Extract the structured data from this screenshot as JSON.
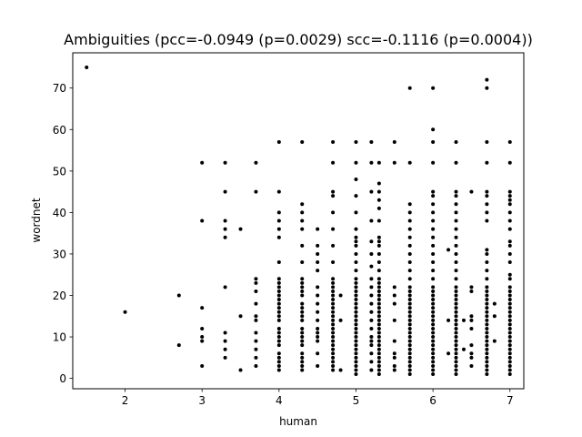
{
  "chart_data": {
    "type": "scatter",
    "title": "Ambiguities (pcc=-0.0949 (p=0.0029) scc=-0.1116 (p=0.0004))",
    "xlabel": "human",
    "ylabel": "wordnet",
    "xlim": [
      1.32,
      7.18
    ],
    "ylim": [
      -2.5,
      78.5
    ],
    "x_ticks": [
      2,
      3,
      4,
      5,
      6,
      7
    ],
    "y_ticks": [
      0,
      10,
      20,
      30,
      40,
      50,
      60,
      70
    ],
    "grid": false,
    "marker_color": "#000000",
    "points": [
      [
        1.5,
        75
      ],
      [
        2,
        16
      ],
      [
        2.7,
        20
      ],
      [
        2.7,
        8
      ],
      [
        3,
        52
      ],
      [
        3,
        38
      ],
      [
        3,
        17
      ],
      [
        3,
        12
      ],
      [
        3,
        10
      ],
      [
        3,
        9
      ],
      [
        3,
        3
      ],
      [
        3.3,
        52
      ],
      [
        3.3,
        45
      ],
      [
        3.3,
        38
      ],
      [
        3.3,
        36
      ],
      [
        3.3,
        34
      ],
      [
        3.3,
        22
      ],
      [
        3.3,
        11
      ],
      [
        3.3,
        9
      ],
      [
        3.3,
        7
      ],
      [
        3.3,
        5
      ],
      [
        3.5,
        36
      ],
      [
        3.5,
        15
      ],
      [
        3.5,
        2
      ],
      [
        3.7,
        52
      ],
      [
        3.7,
        45
      ],
      [
        3.7,
        24
      ],
      [
        3.7,
        23
      ],
      [
        3.7,
        21
      ],
      [
        3.7,
        18
      ],
      [
        3.7,
        15
      ],
      [
        3.7,
        14
      ],
      [
        3.7,
        11
      ],
      [
        3.7,
        9
      ],
      [
        3.7,
        7
      ],
      [
        3.7,
        5
      ],
      [
        3.7,
        3
      ],
      [
        4,
        57
      ],
      [
        4,
        45
      ],
      [
        4,
        40
      ],
      [
        4,
        38
      ],
      [
        4,
        36
      ],
      [
        4,
        34
      ],
      [
        4,
        28
      ],
      [
        4,
        24
      ],
      [
        4,
        23
      ],
      [
        4,
        22
      ],
      [
        4,
        21
      ],
      [
        4,
        20
      ],
      [
        4,
        19
      ],
      [
        4,
        18
      ],
      [
        4,
        17
      ],
      [
        4,
        16
      ],
      [
        4,
        15
      ],
      [
        4,
        14
      ],
      [
        4,
        12
      ],
      [
        4,
        11
      ],
      [
        4,
        10
      ],
      [
        4,
        9
      ],
      [
        4,
        8
      ],
      [
        4,
        6
      ],
      [
        4,
        5
      ],
      [
        4,
        4
      ],
      [
        4,
        3
      ],
      [
        4,
        2
      ],
      [
        4.3,
        57
      ],
      [
        4.3,
        42
      ],
      [
        4.3,
        40
      ],
      [
        4.3,
        38
      ],
      [
        4.3,
        36
      ],
      [
        4.3,
        32
      ],
      [
        4.3,
        28
      ],
      [
        4.3,
        24
      ],
      [
        4.3,
        23
      ],
      [
        4.3,
        22
      ],
      [
        4.3,
        21
      ],
      [
        4.3,
        20
      ],
      [
        4.3,
        18
      ],
      [
        4.3,
        17
      ],
      [
        4.3,
        16
      ],
      [
        4.3,
        15
      ],
      [
        4.3,
        14
      ],
      [
        4.3,
        12
      ],
      [
        4.3,
        11
      ],
      [
        4.3,
        10
      ],
      [
        4.3,
        9
      ],
      [
        4.3,
        8
      ],
      [
        4.3,
        6
      ],
      [
        4.3,
        5
      ],
      [
        4.3,
        4
      ],
      [
        4.3,
        3
      ],
      [
        4.3,
        2
      ],
      [
        4.5,
        36
      ],
      [
        4.5,
        32
      ],
      [
        4.5,
        30
      ],
      [
        4.5,
        28
      ],
      [
        4.5,
        26
      ],
      [
        4.5,
        22
      ],
      [
        4.5,
        20
      ],
      [
        4.5,
        18
      ],
      [
        4.5,
        16
      ],
      [
        4.5,
        14
      ],
      [
        4.5,
        12
      ],
      [
        4.5,
        11
      ],
      [
        4.5,
        10
      ],
      [
        4.5,
        9
      ],
      [
        4.5,
        6
      ],
      [
        4.5,
        3
      ],
      [
        4.7,
        57
      ],
      [
        4.7,
        52
      ],
      [
        4.7,
        45
      ],
      [
        4.7,
        44
      ],
      [
        4.7,
        40
      ],
      [
        4.7,
        36
      ],
      [
        4.7,
        32
      ],
      [
        4.7,
        28
      ],
      [
        4.7,
        24
      ],
      [
        4.7,
        23
      ],
      [
        4.7,
        22
      ],
      [
        4.7,
        21
      ],
      [
        4.7,
        20
      ],
      [
        4.7,
        19
      ],
      [
        4.7,
        18
      ],
      [
        4.7,
        17
      ],
      [
        4.7,
        16
      ],
      [
        4.7,
        15
      ],
      [
        4.7,
        14
      ],
      [
        4.7,
        13
      ],
      [
        4.7,
        12
      ],
      [
        4.7,
        11
      ],
      [
        4.7,
        10
      ],
      [
        4.7,
        9
      ],
      [
        4.7,
        8
      ],
      [
        4.7,
        7
      ],
      [
        4.7,
        6
      ],
      [
        4.7,
        5
      ],
      [
        4.7,
        4
      ],
      [
        4.7,
        3
      ],
      [
        4.7,
        2
      ],
      [
        4.8,
        20
      ],
      [
        4.8,
        14
      ],
      [
        4.8,
        2
      ],
      [
        5,
        57
      ],
      [
        5,
        52
      ],
      [
        5,
        48
      ],
      [
        5,
        44
      ],
      [
        5,
        40
      ],
      [
        5,
        36
      ],
      [
        5,
        34
      ],
      [
        5,
        33
      ],
      [
        5,
        32
      ],
      [
        5,
        30
      ],
      [
        5,
        28
      ],
      [
        5,
        26
      ],
      [
        5,
        24
      ],
      [
        5,
        23
      ],
      [
        5,
        22
      ],
      [
        5,
        21
      ],
      [
        5,
        20
      ],
      [
        5,
        19
      ],
      [
        5,
        18
      ],
      [
        5,
        17
      ],
      [
        5,
        16
      ],
      [
        5,
        15
      ],
      [
        5,
        14
      ],
      [
        5,
        13
      ],
      [
        5,
        12
      ],
      [
        5,
        11
      ],
      [
        5,
        10
      ],
      [
        5,
        9
      ],
      [
        5,
        8
      ],
      [
        5,
        7
      ],
      [
        5,
        6
      ],
      [
        5,
        5
      ],
      [
        5,
        4
      ],
      [
        5,
        3
      ],
      [
        5,
        2
      ],
      [
        5,
        1
      ],
      [
        5.2,
        57
      ],
      [
        5.2,
        52
      ],
      [
        5.2,
        45
      ],
      [
        5.2,
        38
      ],
      [
        5.2,
        33
      ],
      [
        5.2,
        30
      ],
      [
        5.2,
        27
      ],
      [
        5.2,
        24
      ],
      [
        5.2,
        22
      ],
      [
        5.2,
        20
      ],
      [
        5.2,
        18
      ],
      [
        5.2,
        16
      ],
      [
        5.2,
        14
      ],
      [
        5.2,
        12
      ],
      [
        5.2,
        10
      ],
      [
        5.2,
        9
      ],
      [
        5.2,
        8
      ],
      [
        5.2,
        6
      ],
      [
        5.2,
        4
      ],
      [
        5.2,
        2
      ],
      [
        5.3,
        52
      ],
      [
        5.3,
        47
      ],
      [
        5.3,
        45
      ],
      [
        5.3,
        43
      ],
      [
        5.3,
        41
      ],
      [
        5.3,
        38
      ],
      [
        5.3,
        34
      ],
      [
        5.3,
        33
      ],
      [
        5.3,
        32
      ],
      [
        5.3,
        30
      ],
      [
        5.3,
        28
      ],
      [
        5.3,
        26
      ],
      [
        5.3,
        24
      ],
      [
        5.3,
        23
      ],
      [
        5.3,
        22
      ],
      [
        5.3,
        21
      ],
      [
        5.3,
        20
      ],
      [
        5.3,
        19
      ],
      [
        5.3,
        18
      ],
      [
        5.3,
        17
      ],
      [
        5.3,
        16
      ],
      [
        5.3,
        15
      ],
      [
        5.3,
        14
      ],
      [
        5.3,
        13
      ],
      [
        5.3,
        12
      ],
      [
        5.3,
        11
      ],
      [
        5.3,
        10
      ],
      [
        5.3,
        9
      ],
      [
        5.3,
        8
      ],
      [
        5.3,
        7
      ],
      [
        5.3,
        6
      ],
      [
        5.3,
        5
      ],
      [
        5.3,
        4
      ],
      [
        5.3,
        3
      ],
      [
        5.3,
        2
      ],
      [
        5.3,
        1
      ],
      [
        5.5,
        57
      ],
      [
        5.5,
        52
      ],
      [
        5.5,
        22
      ],
      [
        5.5,
        20
      ],
      [
        5.5,
        18
      ],
      [
        5.5,
        14
      ],
      [
        5.5,
        9
      ],
      [
        5.5,
        6
      ],
      [
        5.5,
        5
      ],
      [
        5.5,
        3
      ],
      [
        5.5,
        2
      ],
      [
        5.7,
        70
      ],
      [
        5.7,
        52
      ],
      [
        5.7,
        42
      ],
      [
        5.7,
        40
      ],
      [
        5.7,
        38
      ],
      [
        5.7,
        36
      ],
      [
        5.7,
        34
      ],
      [
        5.7,
        32
      ],
      [
        5.7,
        30
      ],
      [
        5.7,
        28
      ],
      [
        5.7,
        26
      ],
      [
        5.7,
        24
      ],
      [
        5.7,
        22
      ],
      [
        5.7,
        21
      ],
      [
        5.7,
        20
      ],
      [
        5.7,
        19
      ],
      [
        5.7,
        18
      ],
      [
        5.7,
        17
      ],
      [
        5.7,
        16
      ],
      [
        5.7,
        15
      ],
      [
        5.7,
        14
      ],
      [
        5.7,
        13
      ],
      [
        5.7,
        12
      ],
      [
        5.7,
        11
      ],
      [
        5.7,
        10
      ],
      [
        5.7,
        9
      ],
      [
        5.7,
        8
      ],
      [
        5.7,
        7
      ],
      [
        5.7,
        6
      ],
      [
        5.7,
        5
      ],
      [
        5.7,
        4
      ],
      [
        5.7,
        3
      ],
      [
        5.7,
        2
      ],
      [
        5.7,
        1
      ],
      [
        6,
        70
      ],
      [
        6,
        60
      ],
      [
        6,
        57
      ],
      [
        6,
        52
      ],
      [
        6,
        45
      ],
      [
        6,
        44
      ],
      [
        6,
        42
      ],
      [
        6,
        40
      ],
      [
        6,
        38
      ],
      [
        6,
        36
      ],
      [
        6,
        34
      ],
      [
        6,
        32
      ],
      [
        6,
        30
      ],
      [
        6,
        28
      ],
      [
        6,
        26
      ],
      [
        6,
        24
      ],
      [
        6,
        22
      ],
      [
        6,
        21
      ],
      [
        6,
        20
      ],
      [
        6,
        19
      ],
      [
        6,
        18
      ],
      [
        6,
        17
      ],
      [
        6,
        16
      ],
      [
        6,
        15
      ],
      [
        6,
        14
      ],
      [
        6,
        13
      ],
      [
        6,
        12
      ],
      [
        6,
        11
      ],
      [
        6,
        10
      ],
      [
        6,
        9
      ],
      [
        6,
        8
      ],
      [
        6,
        7
      ],
      [
        6,
        6
      ],
      [
        6,
        5
      ],
      [
        6,
        4
      ],
      [
        6,
        3
      ],
      [
        6,
        2
      ],
      [
        6,
        1
      ],
      [
        6.2,
        31
      ],
      [
        6.2,
        14
      ],
      [
        6.2,
        6
      ],
      [
        6.3,
        57
      ],
      [
        6.3,
        52
      ],
      [
        6.3,
        45
      ],
      [
        6.3,
        44
      ],
      [
        6.3,
        42
      ],
      [
        6.3,
        40
      ],
      [
        6.3,
        38
      ],
      [
        6.3,
        36
      ],
      [
        6.3,
        34
      ],
      [
        6.3,
        32
      ],
      [
        6.3,
        30
      ],
      [
        6.3,
        28
      ],
      [
        6.3,
        26
      ],
      [
        6.3,
        24
      ],
      [
        6.3,
        22
      ],
      [
        6.3,
        21
      ],
      [
        6.3,
        20
      ],
      [
        6.3,
        19
      ],
      [
        6.3,
        18
      ],
      [
        6.3,
        17
      ],
      [
        6.3,
        16
      ],
      [
        6.3,
        15
      ],
      [
        6.3,
        14
      ],
      [
        6.3,
        13
      ],
      [
        6.3,
        12
      ],
      [
        6.3,
        11
      ],
      [
        6.3,
        10
      ],
      [
        6.3,
        9
      ],
      [
        6.3,
        8
      ],
      [
        6.3,
        7
      ],
      [
        6.3,
        6
      ],
      [
        6.3,
        5
      ],
      [
        6.3,
        4
      ],
      [
        6.3,
        3
      ],
      [
        6.3,
        2
      ],
      [
        6.3,
        1
      ],
      [
        6.4,
        14
      ],
      [
        6.4,
        7
      ],
      [
        6.5,
        45
      ],
      [
        6.5,
        22
      ],
      [
        6.5,
        21
      ],
      [
        6.5,
        15
      ],
      [
        6.5,
        14
      ],
      [
        6.5,
        12
      ],
      [
        6.5,
        8
      ],
      [
        6.5,
        6
      ],
      [
        6.5,
        5
      ],
      [
        6.5,
        3
      ],
      [
        6.7,
        72
      ],
      [
        6.7,
        70
      ],
      [
        6.7,
        57
      ],
      [
        6.7,
        52
      ],
      [
        6.7,
        45
      ],
      [
        6.7,
        44
      ],
      [
        6.7,
        42
      ],
      [
        6.7,
        40
      ],
      [
        6.7,
        38
      ],
      [
        6.7,
        31
      ],
      [
        6.7,
        30
      ],
      [
        6.7,
        28
      ],
      [
        6.7,
        26
      ],
      [
        6.7,
        24
      ],
      [
        6.7,
        22
      ],
      [
        6.7,
        21
      ],
      [
        6.7,
        20
      ],
      [
        6.7,
        19
      ],
      [
        6.7,
        18
      ],
      [
        6.7,
        17
      ],
      [
        6.7,
        16
      ],
      [
        6.7,
        15
      ],
      [
        6.7,
        14
      ],
      [
        6.7,
        13
      ],
      [
        6.7,
        12
      ],
      [
        6.7,
        11
      ],
      [
        6.7,
        10
      ],
      [
        6.7,
        9
      ],
      [
        6.7,
        8
      ],
      [
        6.7,
        7
      ],
      [
        6.7,
        6
      ],
      [
        6.7,
        5
      ],
      [
        6.7,
        4
      ],
      [
        6.7,
        3
      ],
      [
        6.7,
        2
      ],
      [
        6.7,
        1
      ],
      [
        6.8,
        18
      ],
      [
        6.8,
        15
      ],
      [
        6.8,
        9
      ],
      [
        7,
        57
      ],
      [
        7,
        52
      ],
      [
        7,
        45
      ],
      [
        7,
        44
      ],
      [
        7,
        43
      ],
      [
        7,
        42
      ],
      [
        7,
        40
      ],
      [
        7,
        38
      ],
      [
        7,
        36
      ],
      [
        7,
        33
      ],
      [
        7,
        32
      ],
      [
        7,
        30
      ],
      [
        7,
        28
      ],
      [
        7,
        25
      ],
      [
        7,
        24
      ],
      [
        7,
        22
      ],
      [
        7,
        21
      ],
      [
        7,
        20
      ],
      [
        7,
        19
      ],
      [
        7,
        18
      ],
      [
        7,
        17
      ],
      [
        7,
        16
      ],
      [
        7,
        15
      ],
      [
        7,
        14
      ],
      [
        7,
        13
      ],
      [
        7,
        12
      ],
      [
        7,
        11
      ],
      [
        7,
        10
      ],
      [
        7,
        9
      ],
      [
        7,
        8
      ],
      [
        7,
        7
      ],
      [
        7,
        6
      ],
      [
        7,
        5
      ],
      [
        7,
        4
      ],
      [
        7,
        3
      ],
      [
        7,
        2
      ],
      [
        7,
        1
      ]
    ]
  }
}
